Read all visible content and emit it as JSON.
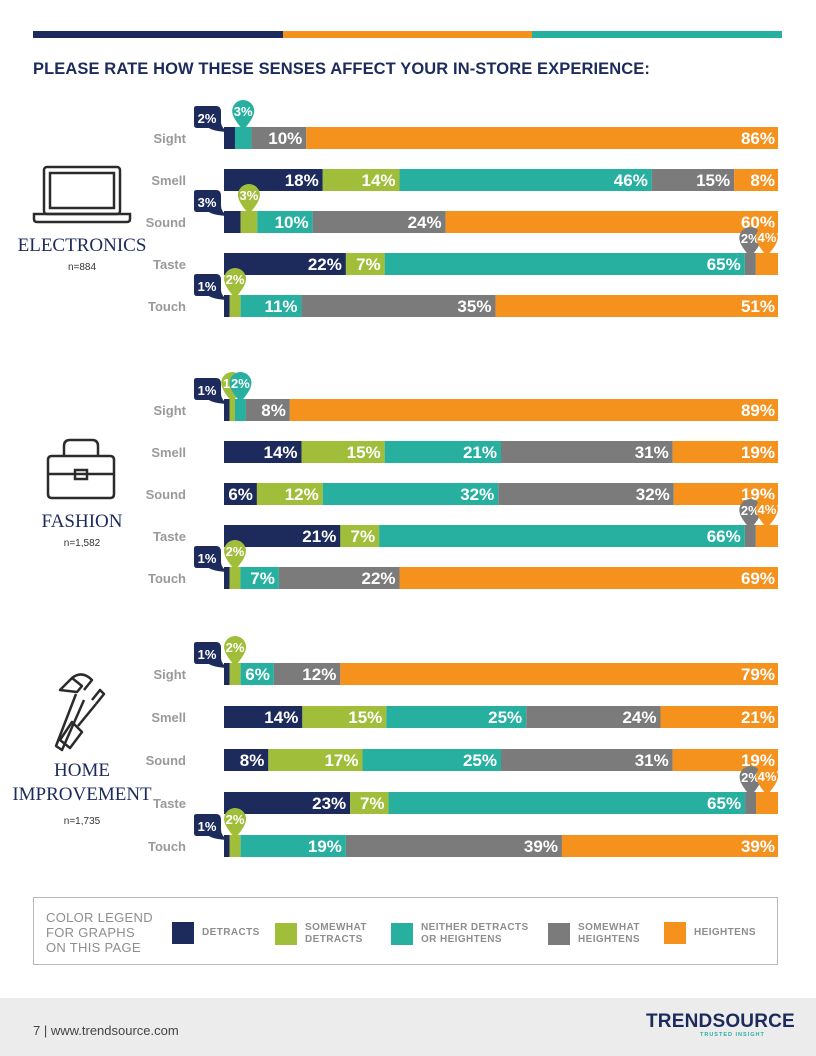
{
  "title": "PLEASE RATE HOW THESE SENSES AFFECT YOUR IN-STORE EXPERIENCE:",
  "colors": {
    "detracts": "#1d2a5c",
    "somewhat_detracts": "#a1be3a",
    "neither": "#27b0a0",
    "somewhat_heightens": "#7b7b7b",
    "heightens": "#f5921e",
    "topbar": [
      "#1d2a5c",
      "#f5921e",
      "#27b0a0"
    ]
  },
  "legend": {
    "title": "COLOR LEGEND FOR GRAPHS ON THIS PAGE",
    "items": [
      {
        "label": "DETRACTS",
        "color": "#1d2a5c"
      },
      {
        "label": "SOMEWHAT DETRACTS",
        "color": "#a1be3a"
      },
      {
        "label": "NEITHER DETRACTS OR HEIGHTENS",
        "color": "#27b0a0"
      },
      {
        "label": "SOMEWHAT HEIGHTENS",
        "color": "#7b7b7b"
      },
      {
        "label": "HEIGHTENS",
        "color": "#f5921e"
      }
    ]
  },
  "footer": {
    "page_text": "7 | www.trendsource.com",
    "brand": "TRENDSOURCE",
    "tagline": "TRUSTED INSIGHT"
  },
  "chart_data": {
    "type": "bar",
    "stacked": true,
    "orientation": "horizontal",
    "title": "PLEASE RATE HOW THESE SENSES AFFECT YOUR IN-STORE EXPERIENCE:",
    "series_names": [
      "DETRACTS",
      "SOMEWHAT DETRACTS",
      "NEITHER DETRACTS OR HEIGHTENS",
      "SOMEWHAT HEIGHTENS",
      "HEIGHTENS"
    ],
    "groups": [
      {
        "name": "ELECTRONICS",
        "n": "n=884",
        "icon": "laptop-icon",
        "rows": [
          {
            "sense": "Sight",
            "values": [
              2,
              0,
              3,
              10,
              86
            ]
          },
          {
            "sense": "Smell",
            "values": [
              18,
              14,
              46,
              15,
              8
            ]
          },
          {
            "sense": "Sound",
            "values": [
              3,
              3,
              10,
              24,
              60
            ]
          },
          {
            "sense": "Taste",
            "values": [
              22,
              7,
              65,
              2,
              4
            ]
          },
          {
            "sense": "Touch",
            "values": [
              1,
              2,
              11,
              35,
              51
            ]
          }
        ]
      },
      {
        "name": "FASHION",
        "n": "n=1,582",
        "icon": "handbag-icon",
        "rows": [
          {
            "sense": "Sight",
            "values": [
              1,
              1,
              2,
              8,
              89
            ]
          },
          {
            "sense": "Smell",
            "values": [
              14,
              15,
              21,
              31,
              19
            ]
          },
          {
            "sense": "Sound",
            "values": [
              6,
              12,
              32,
              32,
              19
            ]
          },
          {
            "sense": "Taste",
            "values": [
              21,
              7,
              66,
              2,
              4
            ]
          },
          {
            "sense": "Touch",
            "values": [
              1,
              2,
              7,
              22,
              69
            ]
          }
        ]
      },
      {
        "name": "HOME IMPROVEMENT",
        "n": "n=1,735",
        "icon": "hammer-screwdriver-icon",
        "rows": [
          {
            "sense": "Sight",
            "values": [
              1,
              2,
              6,
              12,
              79
            ]
          },
          {
            "sense": "Smell",
            "values": [
              14,
              15,
              25,
              24,
              21
            ]
          },
          {
            "sense": "Sound",
            "values": [
              8,
              17,
              25,
              31,
              19
            ]
          },
          {
            "sense": "Taste",
            "values": [
              23,
              7,
              65,
              2,
              4
            ]
          },
          {
            "sense": "Touch",
            "values": [
              1,
              2,
              19,
              39,
              39
            ]
          }
        ]
      }
    ]
  }
}
